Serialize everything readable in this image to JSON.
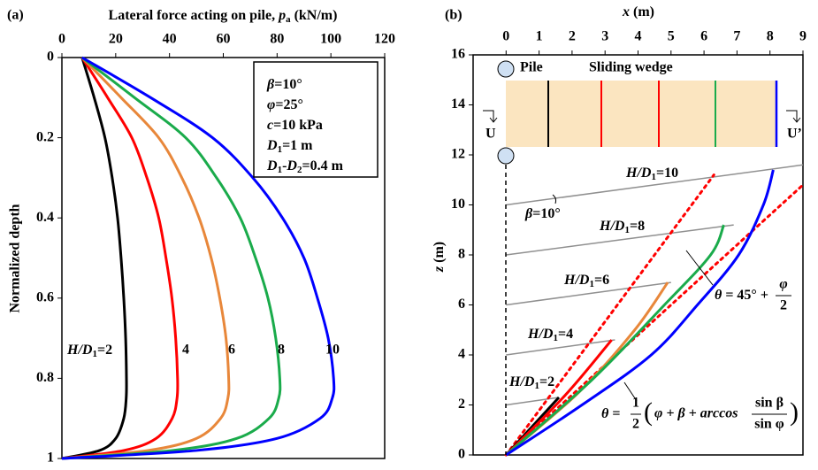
{
  "chart_data": [
    {
      "type": "line",
      "panel": "(a)",
      "xlabel": [
        "Lateral force acting on pile, ",
        "p",
        "a",
        " (kN/m)"
      ],
      "ylabel": "Normalized depth",
      "xlim": [
        0,
        120
      ],
      "xticks": [
        0,
        20,
        40,
        60,
        80,
        100,
        120
      ],
      "ylim": [
        1,
        0
      ],
      "yticks": [
        0,
        0.2,
        0.4,
        0.6,
        0.8,
        1
      ],
      "y": [
        0,
        0.1,
        0.2,
        0.3,
        0.4,
        0.5,
        0.6,
        0.7,
        0.8,
        0.85,
        0.9,
        0.95,
        0.98,
        1
      ],
      "series": [
        {
          "name": "2",
          "color": "#000000",
          "values": [
            7.5,
            12,
            16,
            18.7,
            20.7,
            22,
            23,
            23.7,
            24,
            23.9,
            23,
            20,
            14,
            0
          ]
        },
        {
          "name": "4",
          "color": "#ff0000",
          "values": [
            7.5,
            17,
            26,
            31.6,
            36,
            38.7,
            40.9,
            42.3,
            43,
            42.8,
            41,
            35,
            23,
            0
          ]
        },
        {
          "name": "6",
          "color": "#e8873a",
          "values": [
            7.5,
            22,
            36,
            44.6,
            51,
            55.5,
            58.7,
            61,
            62,
            61.7,
            59,
            50,
            32,
            0
          ]
        },
        {
          "name": "8",
          "color": "#1aab4b",
          "values": [
            7.5,
            27,
            46,
            57.5,
            66.3,
            72,
            76.6,
            79.5,
            81,
            80.6,
            77,
            65,
            41,
            0
          ]
        },
        {
          "name": "10",
          "color": "#0000ff",
          "values": [
            7.5,
            33,
            56,
            71,
            82,
            90,
            95,
            99,
            101,
            100.5,
            96,
            80,
            50,
            0
          ]
        }
      ],
      "curve_label": [
        "H/D",
        "1",
        "="
      ],
      "parameters": [
        [
          "β",
          "=10°"
        ],
        [
          "φ",
          "=25°"
        ],
        [
          "c",
          "=10 kPa"
        ],
        [
          "D",
          "1",
          "=1 m"
        ],
        [
          "D",
          "1",
          "-",
          "D",
          "2",
          "=0.4 m"
        ]
      ]
    },
    {
      "type": "line",
      "panel": "(b)",
      "xlabel": [
        "x",
        " (m)"
      ],
      "ylabel": [
        "z",
        " (m)"
      ],
      "xlim": [
        -1,
        9
      ],
      "xticks": [
        0,
        1,
        2,
        3,
        4,
        5,
        6,
        7,
        8,
        9
      ],
      "ylim": [
        0,
        16
      ],
      "yticks": [
        0,
        2,
        4,
        6,
        8,
        10,
        12,
        14,
        16
      ],
      "series": [
        {
          "name": "2",
          "color": "#000000",
          "x": [
            0,
            1.6
          ],
          "values": [
            0,
            2.3
          ]
        },
        {
          "name": "4",
          "color": "#ff0000",
          "x": [
            0,
            1.8,
            3.2
          ],
          "values": [
            0,
            2.4,
            4.6
          ]
        },
        {
          "name": "6",
          "color": "#e8873a",
          "x": [
            0,
            2.2,
            3.9,
            4.9
          ],
          "values": [
            0,
            2.5,
            5,
            6.9
          ]
        },
        {
          "name": "8",
          "color": "#1aab4b",
          "x": [
            0,
            2.6,
            4.8,
            6.2,
            6.6
          ],
          "values": [
            0,
            3,
            6,
            8,
            9.2
          ]
        },
        {
          "name": "10",
          "color": "#0000ff",
          "x": [
            0,
            2.3,
            4.4,
            5.8,
            7.05,
            7.8,
            8.1
          ],
          "values": [
            0,
            2,
            4,
            6,
            8,
            10,
            11.4
          ]
        }
      ],
      "ground_surfaces": [
        {
          "x": [
            0,
            1.6
          ],
          "values": [
            2,
            2.3
          ]
        },
        {
          "x": [
            0,
            3.3
          ],
          "values": [
            4,
            4.6
          ]
        },
        {
          "x": [
            0,
            5.0
          ],
          "values": [
            6,
            6.9
          ]
        },
        {
          "x": [
            0,
            6.9
          ],
          "values": [
            8,
            9.2
          ]
        },
        {
          "x": [
            0,
            9
          ],
          "values": [
            10,
            11.6
          ]
        }
      ],
      "bounds": [
        {
          "color": "#ff0000",
          "x": [
            0,
            6.3
          ],
          "values": [
            0,
            11.2
          ]
        },
        {
          "color": "#ff0000",
          "x": [
            0,
            9
          ],
          "values": [
            0,
            10.8
          ]
        }
      ],
      "curve_label": [
        "H/D",
        "1",
        "="
      ],
      "beta_label": [
        "β",
        "=10°"
      ],
      "schematic": {
        "pile": "Pile",
        "wedge": "Sliding wedge",
        "left": "U",
        "right": "U’"
      },
      "formula1": {
        "lhs": "θ",
        "rhs": " = 45° + ",
        "num": "φ",
        "den": "2"
      },
      "formula2": {
        "lhs": "θ",
        "eq": " = ",
        "num": "1",
        "den": "2",
        "open": "(",
        "mid": "φ + β + arccos",
        "num2": "sin β",
        "den2": "sin φ",
        "close": ")"
      }
    }
  ]
}
